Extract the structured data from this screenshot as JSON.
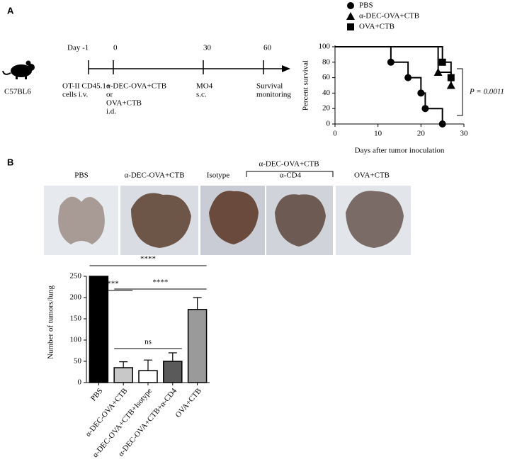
{
  "panel_labels": [
    "A",
    "B"
  ],
  "timeline": {
    "mouse": "C57BL6",
    "points": [
      {
        "day": "Day -1",
        "text": [
          "OT-II CD45.1+",
          "cells i.v."
        ]
      },
      {
        "day": "0",
        "text": [
          "α-DEC-OVA+CTB",
          "or",
          "OVA+CTB",
          "i.d."
        ]
      },
      {
        "day": "30",
        "text": [
          "MO4",
          "s.c."
        ]
      },
      {
        "day": "60",
        "text": [
          "Survival",
          "monitoring"
        ]
      }
    ]
  },
  "images": {
    "group_label": "α-DEC-OVA+CTB",
    "labels": [
      "PBS",
      "α-DEC-OVA+CTB",
      "Isotype",
      "α-CD4",
      "OVA+CTB"
    ]
  },
  "chart_data": [
    {
      "type": "step",
      "ylabel": "Percent survival",
      "xlabel": "Days after tumor inoculation",
      "annotation": "P = 0.0011",
      "xlim": [
        0,
        30
      ],
      "xticks": [
        0,
        10,
        20,
        30
      ],
      "ylim": [
        0,
        100
      ],
      "yticks": [
        0,
        20,
        40,
        60,
        80,
        100
      ],
      "series": [
        {
          "name": "PBS",
          "color": "#000000",
          "marker": "circle",
          "x": [
            0,
            13,
            17,
            20,
            21,
            25
          ],
          "values": [
            100,
            80,
            60,
            40,
            20,
            0
          ]
        },
        {
          "name": "α-DEC-OVA+CTB",
          "color": "#000000",
          "marker": "triangle",
          "x": [
            0,
            24,
            27
          ],
          "values": [
            100,
            67,
            50
          ]
        },
        {
          "name": "OVA+CTB",
          "color": "#000000",
          "marker": "square",
          "x": [
            0,
            25,
            27
          ],
          "values": [
            100,
            80,
            60
          ]
        }
      ]
    },
    {
      "type": "bar",
      "ylabel": "Number of tumors/lung",
      "categories": [
        "PBS",
        "α-DEC-OVA+CTB",
        "α-DEC-OVA+CTB+Isotype",
        "α-DEC-OVA+CTB+α-CD4",
        "OVA+CTB"
      ],
      "values": [
        250,
        35,
        28,
        50,
        172
      ],
      "errors": [
        null,
        14,
        25,
        20,
        28
      ],
      "colors": [
        "#000000",
        "#c8c8c8",
        "#ffffff",
        "#5a5a5a",
        "#9a9a9a"
      ],
      "ylim": [
        0,
        250
      ],
      "yticks": [
        0,
        50,
        100,
        150,
        200,
        250
      ],
      "comparisons": [
        {
          "from": 0,
          "to": 4,
          "label": "****"
        },
        {
          "from": 0,
          "to": 1,
          "label": "****"
        },
        {
          "from": 1,
          "to": 4,
          "label": "****"
        },
        {
          "from": 1,
          "to": 3,
          "label": "ns"
        }
      ]
    }
  ]
}
